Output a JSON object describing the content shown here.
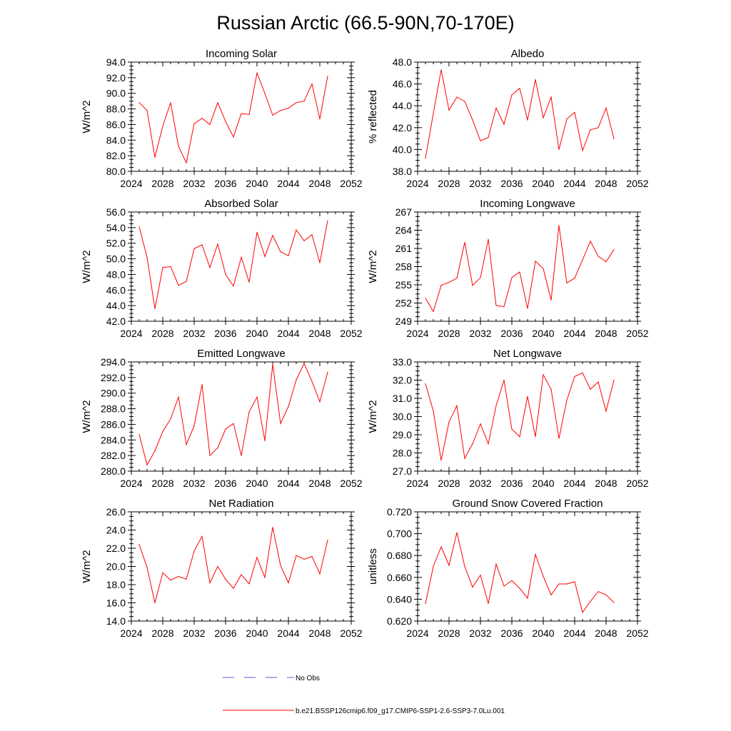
{
  "figure": {
    "title": "Russian Arctic (66.5-90N,70-170E)",
    "series_color": "#ff0000",
    "obs_color": "#5a5adc"
  },
  "legend": {
    "obs_label": "No Obs",
    "model_label": "b.e21.BSSP126cmip6.f09_g17.CMIP6-SSP1-2.6-SSP3-7.0Lu.001"
  },
  "chart_data": [
    {
      "type": "line",
      "title": "Incoming Solar",
      "ylabel": "W/m^2",
      "xlim": [
        2024,
        2052
      ],
      "xticks": [
        "2024",
        "2028",
        "2032",
        "2036",
        "2040",
        "2044",
        "2048",
        "2052"
      ],
      "ylim": [
        80.0,
        94.0
      ],
      "yticks": [
        "80.0",
        "82.0",
        "84.0",
        "86.0",
        "88.0",
        "90.0",
        "92.0",
        "94.0"
      ],
      "x": [
        2025,
        2026,
        2027,
        2028,
        2029,
        2030,
        2031,
        2032,
        2033,
        2034,
        2035,
        2036,
        2037,
        2038,
        2039,
        2040,
        2041,
        2042,
        2043,
        2044,
        2045,
        2046,
        2047,
        2048,
        2049
      ],
      "series": [
        {
          "values": [
            88.8,
            87.8,
            81.8,
            85.8,
            88.8,
            83.2,
            81.1,
            86.1,
            86.8,
            86.0,
            88.8,
            86.4,
            84.4,
            87.4,
            87.3,
            92.6,
            90.0,
            87.2,
            87.8,
            88.1,
            88.8,
            89.0,
            91.2,
            86.7,
            92.2
          ]
        }
      ]
    },
    {
      "type": "line",
      "title": "Albedo",
      "ylabel": "% reflected",
      "xlim": [
        2024,
        2052
      ],
      "xticks": [
        "2024",
        "2028",
        "2032",
        "2036",
        "2040",
        "2044",
        "2048",
        "2052"
      ],
      "ylim": [
        38.0,
        48.0
      ],
      "yticks": [
        "38.0",
        "40.0",
        "42.0",
        "44.0",
        "46.0",
        "48.0"
      ],
      "x": [
        2025,
        2026,
        2027,
        2028,
        2029,
        2030,
        2031,
        2032,
        2033,
        2034,
        2035,
        2036,
        2037,
        2038,
        2039,
        2040,
        2041,
        2042,
        2043,
        2044,
        2045,
        2046,
        2047,
        2048,
        2049
      ],
      "series": [
        {
          "values": [
            39.2,
            43.3,
            47.3,
            43.6,
            44.8,
            44.4,
            42.7,
            40.8,
            41.1,
            43.8,
            42.3,
            45.0,
            45.6,
            42.7,
            46.4,
            42.9,
            44.8,
            40.0,
            42.8,
            43.4,
            39.9,
            41.8,
            42.0,
            43.8,
            41.0
          ]
        }
      ]
    },
    {
      "type": "line",
      "title": "Absorbed Solar",
      "ylabel": "W/m^2",
      "xlim": [
        2024,
        2052
      ],
      "xticks": [
        "2024",
        "2028",
        "2032",
        "2036",
        "2040",
        "2044",
        "2048",
        "2052"
      ],
      "ylim": [
        42.0,
        56.0
      ],
      "yticks": [
        "42.0",
        "44.0",
        "46.0",
        "48.0",
        "50.0",
        "52.0",
        "54.0",
        "56.0"
      ],
      "x": [
        2025,
        2026,
        2027,
        2028,
        2029,
        2030,
        2031,
        2032,
        2033,
        2034,
        2035,
        2036,
        2037,
        2038,
        2039,
        2040,
        2041,
        2042,
        2043,
        2044,
        2045,
        2046,
        2047,
        2048,
        2049
      ],
      "series": [
        {
          "values": [
            54.1,
            50.2,
            43.6,
            48.9,
            49.0,
            46.6,
            47.1,
            51.3,
            51.8,
            48.9,
            51.9,
            48.0,
            46.5,
            50.2,
            47.0,
            53.4,
            50.3,
            53.0,
            50.9,
            50.4,
            53.7,
            52.3,
            53.1,
            49.5,
            54.9
          ]
        }
      ]
    },
    {
      "type": "line",
      "title": "Incoming Longwave",
      "ylabel": "W/m^2",
      "xlim": [
        2024,
        2052
      ],
      "xticks": [
        "2024",
        "2028",
        "2032",
        "2036",
        "2040",
        "2044",
        "2048",
        "2052"
      ],
      "ylim": [
        249,
        267
      ],
      "yticks": [
        "249",
        "252",
        "255",
        "258",
        "261",
        "264",
        "267"
      ],
      "x": [
        2025,
        2026,
        2027,
        2028,
        2029,
        2030,
        2031,
        2032,
        2033,
        2034,
        2035,
        2036,
        2037,
        2038,
        2039,
        2040,
        2041,
        2042,
        2043,
        2044,
        2045,
        2046,
        2047,
        2048,
        2049
      ],
      "series": [
        {
          "values": [
            252.8,
            250.6,
            254.9,
            255.4,
            256.1,
            262.0,
            254.9,
            256.2,
            262.5,
            251.6,
            251.4,
            256.2,
            257.1,
            251.1,
            258.9,
            257.7,
            252.5,
            264.8,
            255.3,
            256.1,
            259.1,
            262.2,
            259.7,
            258.8,
            260.8
          ]
        }
      ]
    },
    {
      "type": "line",
      "title": "Emitted Longwave",
      "ylabel": "W/m^2",
      "xlim": [
        2024,
        2052
      ],
      "xticks": [
        "2024",
        "2028",
        "2032",
        "2036",
        "2040",
        "2044",
        "2048",
        "2052"
      ],
      "ylim": [
        280.0,
        294.0
      ],
      "yticks": [
        "280.0",
        "282.0",
        "284.0",
        "286.0",
        "288.0",
        "290.0",
        "292.0",
        "294.0"
      ],
      "x": [
        2025,
        2026,
        2027,
        2028,
        2029,
        2030,
        2031,
        2032,
        2033,
        2034,
        2035,
        2036,
        2037,
        2038,
        2039,
        2040,
        2041,
        2042,
        2043,
        2044,
        2045,
        2046,
        2047,
        2048,
        2049
      ],
      "series": [
        {
          "values": [
            284.7,
            280.8,
            282.6,
            285.1,
            286.7,
            289.5,
            283.4,
            285.8,
            291.1,
            282.0,
            283.0,
            285.4,
            286.1,
            282.0,
            287.6,
            289.5,
            283.9,
            293.7,
            286.1,
            288.3,
            291.7,
            293.8,
            291.5,
            288.9,
            292.7
          ]
        }
      ]
    },
    {
      "type": "line",
      "title": "Net Longwave",
      "ylabel": "W/m^2",
      "xlim": [
        2024,
        2052
      ],
      "xticks": [
        "2024",
        "2028",
        "2032",
        "2036",
        "2040",
        "2044",
        "2048",
        "2052"
      ],
      "ylim": [
        27.0,
        33.0
      ],
      "yticks": [
        "27.0",
        "28.0",
        "29.0",
        "30.0",
        "31.0",
        "32.0",
        "33.0"
      ],
      "x": [
        2025,
        2026,
        2027,
        2028,
        2029,
        2030,
        2031,
        2032,
        2033,
        2034,
        2035,
        2036,
        2037,
        2038,
        2039,
        2040,
        2041,
        2042,
        2043,
        2044,
        2045,
        2046,
        2047,
        2048,
        2049
      ],
      "series": [
        {
          "values": [
            31.8,
            30.3,
            27.6,
            29.7,
            30.6,
            27.7,
            28.5,
            29.6,
            28.5,
            30.6,
            32.0,
            29.3,
            28.9,
            31.1,
            28.9,
            32.3,
            31.5,
            28.8,
            30.9,
            32.2,
            32.4,
            31.5,
            31.9,
            30.3,
            32.0
          ]
        }
      ]
    },
    {
      "type": "line",
      "title": "Net Radiation",
      "ylabel": "W/m^2",
      "xlim": [
        2024,
        2052
      ],
      "xticks": [
        "2024",
        "2028",
        "2032",
        "2036",
        "2040",
        "2044",
        "2048",
        "2052"
      ],
      "ylim": [
        14.0,
        26.0
      ],
      "yticks": [
        "14.0",
        "16.0",
        "18.0",
        "20.0",
        "22.0",
        "24.0",
        "26.0"
      ],
      "x": [
        2025,
        2026,
        2027,
        2028,
        2029,
        2030,
        2031,
        2032,
        2033,
        2034,
        2035,
        2036,
        2037,
        2038,
        2039,
        2040,
        2041,
        2042,
        2043,
        2044,
        2045,
        2046,
        2047,
        2048,
        2049
      ],
      "series": [
        {
          "values": [
            22.4,
            19.9,
            16.0,
            19.3,
            18.5,
            18.9,
            18.6,
            21.7,
            23.3,
            18.2,
            20.0,
            18.6,
            17.6,
            19.1,
            18.1,
            21.0,
            18.8,
            24.3,
            20.1,
            18.2,
            21.2,
            20.8,
            21.1,
            19.2,
            22.9
          ]
        }
      ]
    },
    {
      "type": "line",
      "title": "Ground Snow Covered Fraction",
      "ylabel": "unitless",
      "xlim": [
        2024,
        2052
      ],
      "xticks": [
        "2024",
        "2028",
        "2032",
        "2036",
        "2040",
        "2044",
        "2048",
        "2052"
      ],
      "ylim": [
        0.62,
        0.72
      ],
      "yticks": [
        "0.620",
        "0.640",
        "0.660",
        "0.680",
        "0.700",
        "0.720"
      ],
      "x": [
        2025,
        2026,
        2027,
        2028,
        2029,
        2030,
        2031,
        2032,
        2033,
        2034,
        2035,
        2036,
        2037,
        2038,
        2039,
        2040,
        2041,
        2042,
        2043,
        2044,
        2045,
        2046,
        2047,
        2048,
        2049
      ],
      "series": [
        {
          "values": [
            0.636,
            0.67,
            0.688,
            0.671,
            0.701,
            0.67,
            0.651,
            0.662,
            0.636,
            0.672,
            0.652,
            0.657,
            0.65,
            0.641,
            0.681,
            0.661,
            0.644,
            0.654,
            0.654,
            0.656,
            0.628,
            0.638,
            0.647,
            0.644,
            0.637
          ]
        }
      ]
    }
  ]
}
